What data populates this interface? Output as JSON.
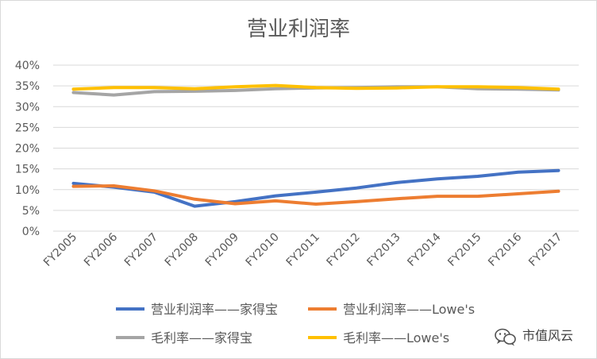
{
  "chart_data": {
    "type": "line",
    "title": "营业利润率",
    "categories": [
      "FY2005",
      "FY2006",
      "FY2007",
      "FY2008",
      "FY2009",
      "FY2010",
      "FY2011",
      "FY2012",
      "FY2013",
      "FY2014",
      "FY2015",
      "FY2016",
      "FY2017"
    ],
    "ylim": [
      0,
      40
    ],
    "yticks": [
      "0%",
      "5%",
      "10%",
      "15%",
      "20%",
      "25%",
      "30%",
      "35%",
      "40%"
    ],
    "xlabel": "",
    "ylabel": "",
    "grid": true,
    "legend_position": "bottom",
    "series": [
      {
        "name": "营业利润率——家得宝",
        "color": "#4472C4",
        "values": [
          11.5,
          10.6,
          9.4,
          6.0,
          7.1,
          8.5,
          9.4,
          10.4,
          11.7,
          12.6,
          13.2,
          14.2,
          14.6
        ]
      },
      {
        "name": "营业利润率——Lowe's",
        "color": "#ED7D31",
        "values": [
          10.8,
          10.9,
          9.7,
          7.7,
          6.6,
          7.3,
          6.5,
          7.1,
          7.8,
          8.4,
          8.4,
          9.0,
          9.6
        ]
      },
      {
        "name": "毛利率——家得宝",
        "color": "#A5A5A5",
        "values": [
          33.4,
          32.8,
          33.6,
          33.7,
          33.9,
          34.3,
          34.5,
          34.6,
          34.8,
          34.8,
          34.3,
          34.2,
          34.0
        ]
      },
      {
        "name": "毛利率——Lowe's",
        "color": "#FFC000",
        "values": [
          34.2,
          34.6,
          34.6,
          34.3,
          34.8,
          35.1,
          34.6,
          34.4,
          34.5,
          34.8,
          34.8,
          34.6,
          34.2
        ]
      }
    ]
  },
  "watermark": {
    "text": "市值风云",
    "icon": "wechat-icon"
  }
}
